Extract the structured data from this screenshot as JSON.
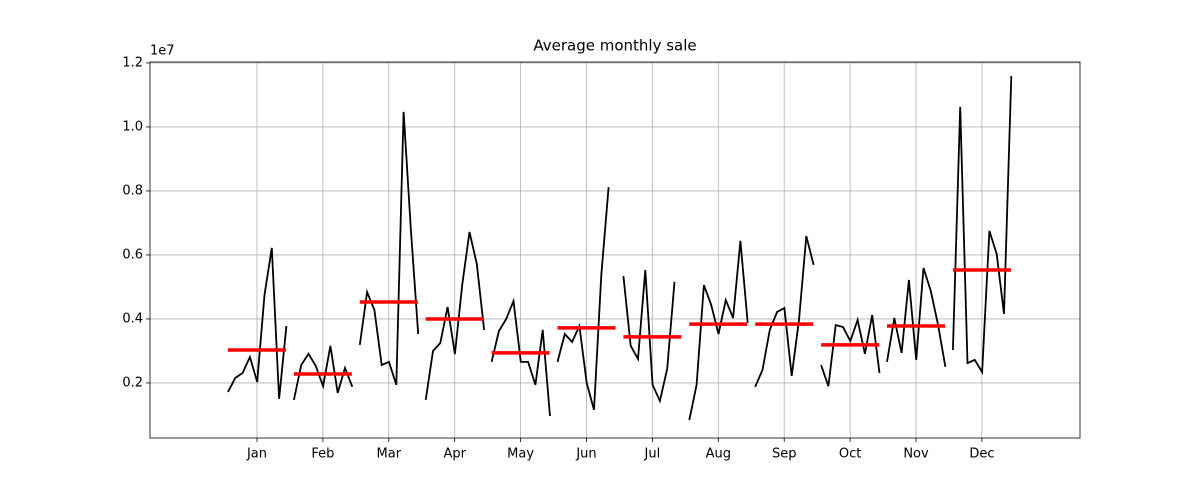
{
  "chart_data": {
    "type": "monthplot",
    "title": "Average monthly sale",
    "offset_label": "1e7",
    "categories": [
      "Jan",
      "Feb",
      "Mar",
      "Apr",
      "May",
      "Jun",
      "Jul",
      "Aug",
      "Sep",
      "Oct",
      "Nov",
      "Dec"
    ],
    "values": [
      [
        0.172,
        0.216,
        0.231,
        0.281,
        0.203,
        0.475,
        0.622,
        0.15,
        0.378
      ],
      [
        0.147,
        0.256,
        0.291,
        0.253,
        0.19,
        0.316,
        0.169,
        0.247,
        0.188
      ],
      [
        0.319,
        0.484,
        0.428,
        0.256,
        0.266,
        0.194,
        1.047,
        0.678,
        0.353
      ],
      [
        0.147,
        0.3,
        0.325,
        0.4375,
        0.29,
        0.506,
        0.672,
        0.572,
        0.366
      ],
      [
        0.266,
        0.362,
        0.4,
        0.456,
        0.266,
        0.266,
        0.194,
        0.366,
        0.097
      ],
      [
        0.266,
        0.353,
        0.328,
        0.378,
        0.2,
        0.116,
        0.537,
        0.812
      ],
      [
        0.534,
        0.316,
        0.275,
        0.553,
        0.194,
        0.144,
        0.244,
        0.516
      ],
      [
        0.084,
        0.194,
        0.506,
        0.444,
        0.353,
        0.459,
        0.403,
        0.644,
        0.388
      ],
      [
        0.188,
        0.241,
        0.366,
        0.422,
        0.434,
        0.222,
        0.397,
        0.659,
        0.569
      ],
      [
        0.256,
        0.19,
        0.381,
        0.375,
        0.331,
        0.397,
        0.291,
        0.4125,
        0.231
      ],
      [
        0.266,
        0.403,
        0.294,
        0.522,
        0.272,
        0.559,
        0.4875,
        0.381,
        0.25
      ],
      [
        0.303,
        1.0625,
        0.262,
        0.272,
        0.234,
        0.675,
        0.603,
        0.416,
        1.159
      ]
    ],
    "means": [
      0.303,
      0.228,
      0.453,
      0.4,
      0.294,
      0.372,
      0.344,
      0.384,
      0.384,
      0.319,
      0.378,
      0.553
    ],
    "color": "#000000",
    "mean_color": "#ff0000",
    "ylim": [
      0.028,
      1.203
    ],
    "yticks": [
      0.2,
      0.4,
      0.6,
      0.8,
      {
        "value": 1,
        "label": "1.0"
      },
      1.2
    ],
    "grid": true
  }
}
